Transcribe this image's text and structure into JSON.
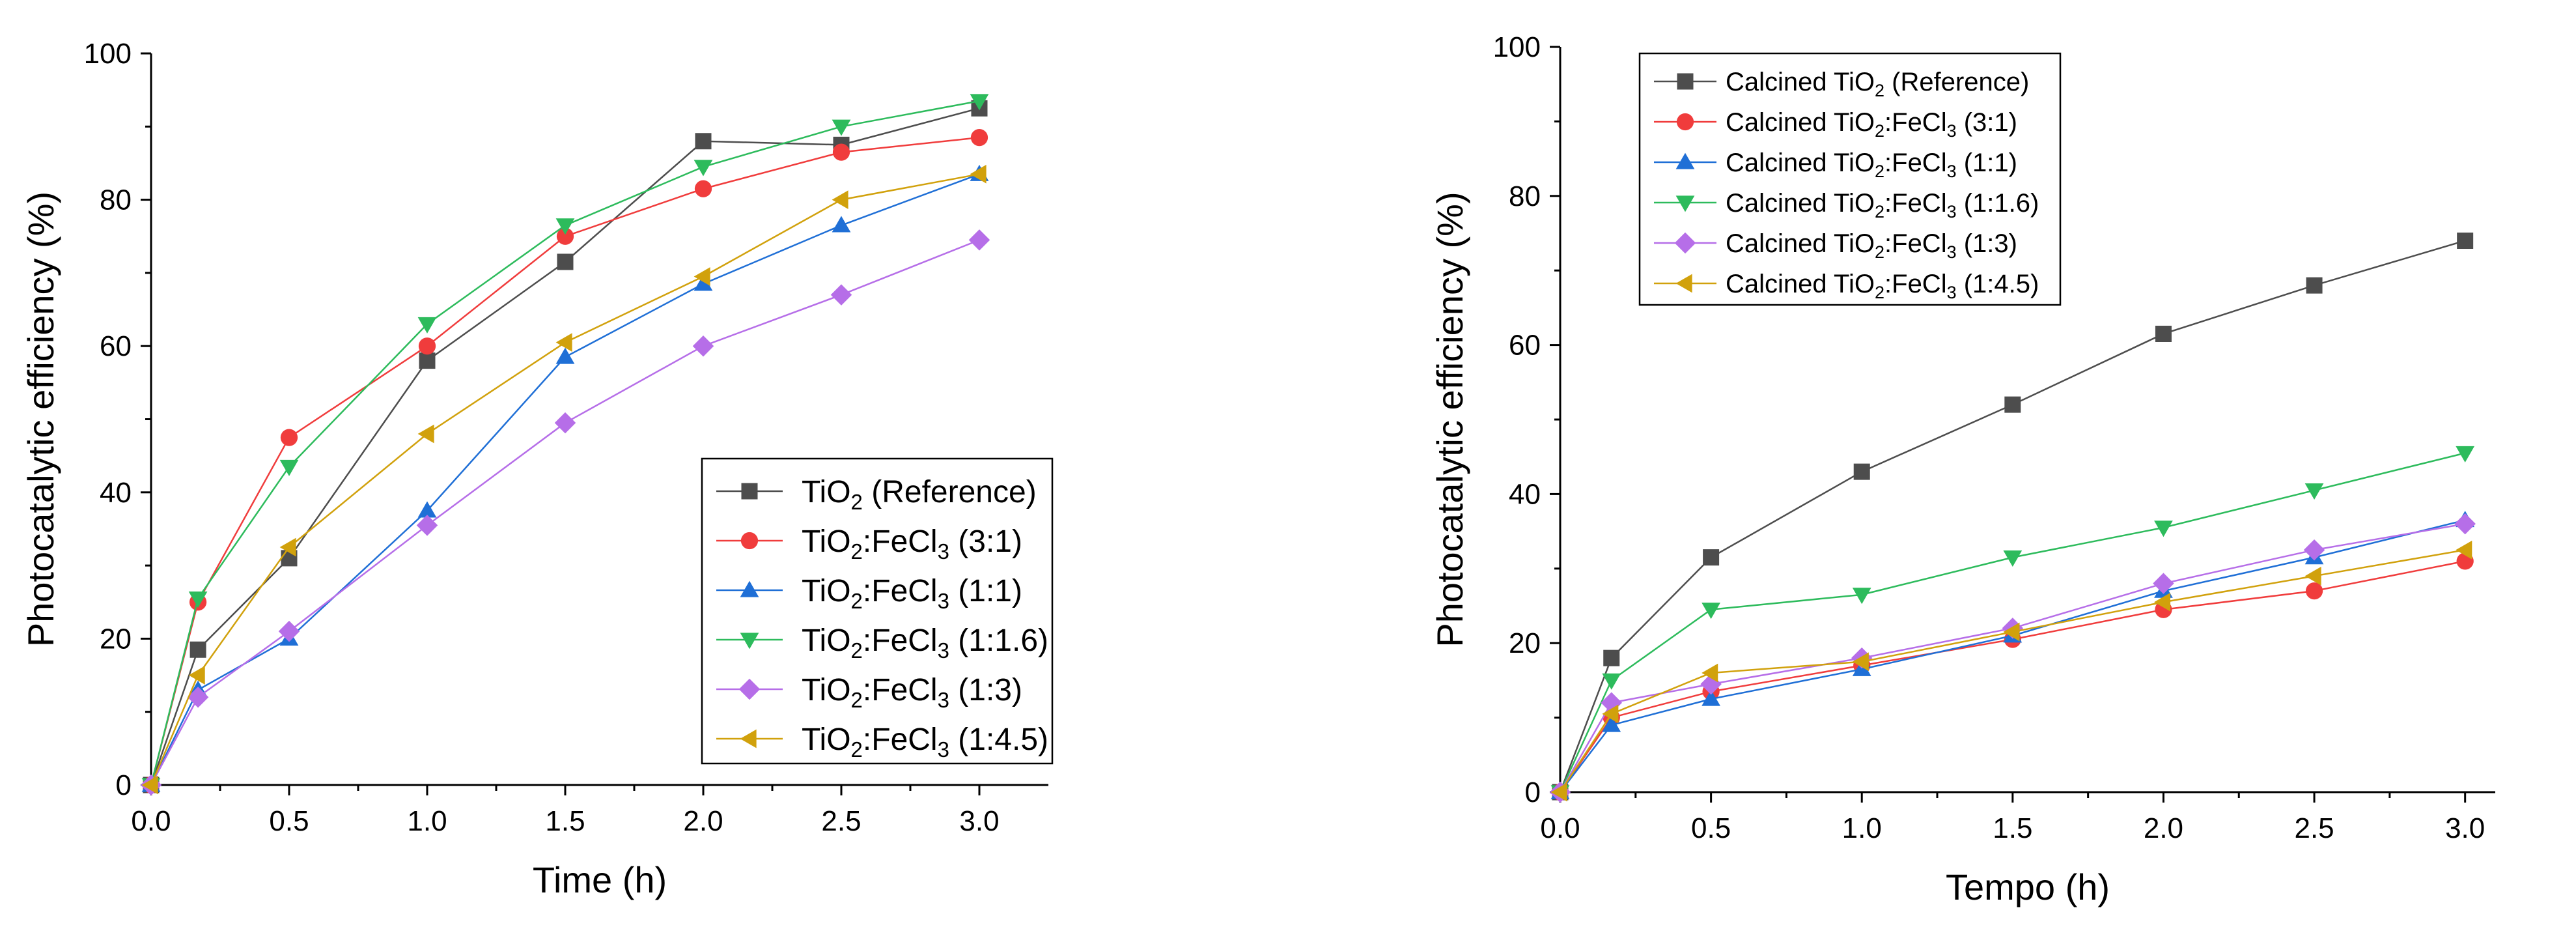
{
  "chart_data": [
    {
      "type": "line",
      "title": "",
      "xlabel": "Time (h)",
      "ylabel": "Photocatalytic efficiency (%)",
      "xlim": [
        0,
        3.25
      ],
      "ylim": [
        0,
        100
      ],
      "xticks": [
        "0.0",
        "0.5",
        "1.0",
        "1.5",
        "2.0",
        "2.5",
        "3.0"
      ],
      "yticks": [
        "0",
        "20",
        "40",
        "60",
        "80",
        "100"
      ],
      "grid": false,
      "legend_position": "bottom-right",
      "x": [
        0,
        0.17,
        0.5,
        1.0,
        1.5,
        2.0,
        2.5,
        3.0
      ],
      "series": [
        {
          "name_parts": [
            {
              "t": "TiO"
            },
            {
              "t": "2",
              "sub": true
            },
            {
              "t": " (Reference)"
            }
          ],
          "marker": "square",
          "color": "#4d4d4d",
          "values": [
            0,
            18.5,
            31,
            58,
            71.5,
            88,
            87.5,
            92.5
          ]
        },
        {
          "name_parts": [
            {
              "t": "TiO"
            },
            {
              "t": "2",
              "sub": true
            },
            {
              "t": ":FeCl"
            },
            {
              "t": "3",
              "sub": true
            },
            {
              "t": " (3:1)"
            }
          ],
          "marker": "circle",
          "color": "#f03c3c",
          "values": [
            0,
            25,
            47.5,
            60,
            75,
            81.5,
            86.5,
            88.5
          ]
        },
        {
          "name_parts": [
            {
              "t": "TiO"
            },
            {
              "t": "2",
              "sub": true
            },
            {
              "t": ":FeCl"
            },
            {
              "t": "3",
              "sub": true
            },
            {
              "t": " (1:1)"
            }
          ],
          "marker": "triangle-up",
          "color": "#1f6fd6",
          "values": [
            0,
            13,
            20,
            37.5,
            58.5,
            68.5,
            76.5,
            83.5
          ]
        },
        {
          "name_parts": [
            {
              "t": "TiO"
            },
            {
              "t": "2",
              "sub": true
            },
            {
              "t": ":FeCl"
            },
            {
              "t": "3",
              "sub": true
            },
            {
              "t": " (1:1.6)"
            }
          ],
          "marker": "triangle-down",
          "color": "#2dbb5c",
          "values": [
            0,
            25.5,
            43.5,
            63,
            76.5,
            84.5,
            90,
            93.5
          ]
        },
        {
          "name_parts": [
            {
              "t": "TiO"
            },
            {
              "t": "2",
              "sub": true
            },
            {
              "t": ":FeCl"
            },
            {
              "t": "3",
              "sub": true
            },
            {
              "t": " (1:3)"
            }
          ],
          "marker": "diamond",
          "color": "#b66ee8",
          "values": [
            0,
            12,
            21,
            35.5,
            49.5,
            60,
            67,
            74.5
          ]
        },
        {
          "name_parts": [
            {
              "t": "TiO"
            },
            {
              "t": "2",
              "sub": true
            },
            {
              "t": ":FeCl"
            },
            {
              "t": "3",
              "sub": true
            },
            {
              "t": " (1:4.5)"
            }
          ],
          "marker": "triangle-left",
          "color": "#d1a10c",
          "values": [
            0,
            15,
            32.5,
            48,
            60.5,
            69.5,
            80,
            83.5
          ]
        }
      ]
    },
    {
      "type": "line",
      "title": "",
      "xlabel": "Tempo (h)",
      "ylabel": "Photocatalytic efficiency (%)",
      "xlim": [
        0,
        3.1
      ],
      "ylim": [
        0,
        100
      ],
      "xticks": [
        "0.0",
        "0.5",
        "1.0",
        "1.5",
        "2.0",
        "2.5",
        "3.0"
      ],
      "yticks": [
        "0",
        "20",
        "40",
        "60",
        "80",
        "100"
      ],
      "grid": false,
      "legend_position": "top-left",
      "x": [
        0,
        0.17,
        0.5,
        1.0,
        1.5,
        2.0,
        2.5,
        3.0
      ],
      "series": [
        {
          "name_parts": [
            {
              "t": "Calcined TiO"
            },
            {
              "t": "2",
              "sub": true
            },
            {
              "t": " (Reference)"
            }
          ],
          "marker": "square",
          "color": "#4d4d4d",
          "values": [
            0,
            18,
            31.5,
            43,
            52,
            61.5,
            68,
            74
          ]
        },
        {
          "name_parts": [
            {
              "t": "Calcined TiO"
            },
            {
              "t": "2",
              "sub": true
            },
            {
              "t": ":FeCl"
            },
            {
              "t": "3",
              "sub": true
            },
            {
              "t": " (3:1)"
            }
          ],
          "marker": "circle",
          "color": "#f03c3c",
          "values": [
            0,
            10,
            13.5,
            17,
            20.5,
            24.5,
            27,
            31
          ]
        },
        {
          "name_parts": [
            {
              "t": "Calcined TiO"
            },
            {
              "t": "2",
              "sub": true
            },
            {
              "t": ":FeCl"
            },
            {
              "t": "3",
              "sub": true
            },
            {
              "t": " (1:1)"
            }
          ],
          "marker": "triangle-up",
          "color": "#1f6fd6",
          "values": [
            0,
            9,
            12.5,
            16.5,
            21,
            27,
            31.5,
            36.5
          ]
        },
        {
          "name_parts": [
            {
              "t": "Calcined TiO"
            },
            {
              "t": "2",
              "sub": true
            },
            {
              "t": ":FeCl"
            },
            {
              "t": "3",
              "sub": true
            },
            {
              "t": " (1:1.6)"
            }
          ],
          "marker": "triangle-down",
          "color": "#2dbb5c",
          "values": [
            0,
            15,
            24.5,
            26.5,
            31.5,
            35.5,
            40.5,
            45.5
          ]
        },
        {
          "name_parts": [
            {
              "t": "Calcined TiO"
            },
            {
              "t": "2",
              "sub": true
            },
            {
              "t": ":FeCl"
            },
            {
              "t": "3",
              "sub": true
            },
            {
              "t": " (1:3)"
            }
          ],
          "marker": "diamond",
          "color": "#b66ee8",
          "values": [
            0,
            12,
            14.5,
            18,
            22,
            28,
            32.5,
            36
          ]
        },
        {
          "name_parts": [
            {
              "t": "Calcined TiO"
            },
            {
              "t": "2",
              "sub": true
            },
            {
              "t": ":FeCl"
            },
            {
              "t": "3",
              "sub": true
            },
            {
              "t": " (1:4.5)"
            }
          ],
          "marker": "triangle-left",
          "color": "#d1a10c",
          "values": [
            0,
            10.5,
            16,
            17.5,
            21.5,
            25.5,
            29,
            32.5
          ]
        }
      ]
    }
  ]
}
